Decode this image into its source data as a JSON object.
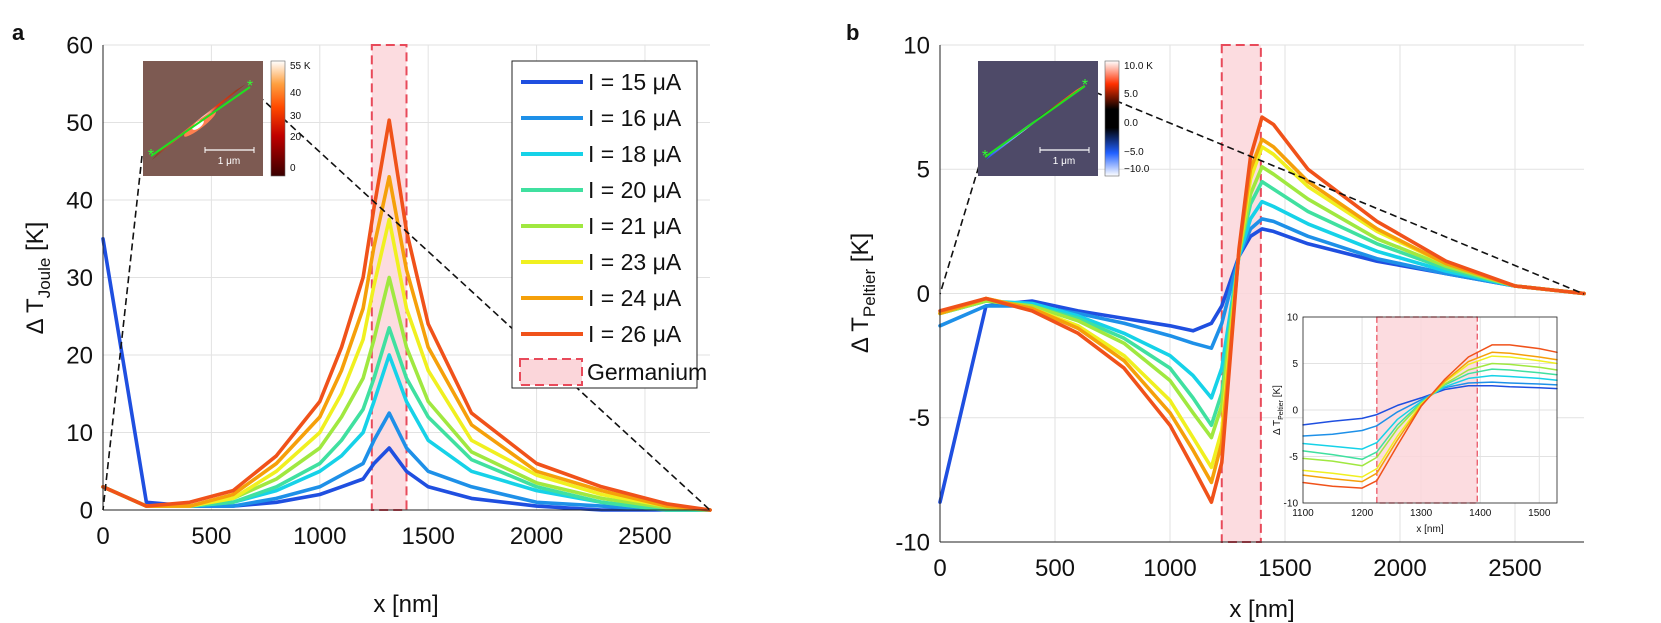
{
  "figure": {
    "panels": [
      {
        "panel_label": "a",
        "type": "line",
        "xlabel": "x [nm]",
        "ylabel_main": "Δ T",
        "ylabel_sub": "Joule",
        "ylabel_tail": " [K]",
        "xlim": [
          0,
          2800
        ],
        "ylim": [
          0,
          60
        ],
        "xticks": [
          0,
          500,
          1000,
          1500,
          2000,
          2500
        ],
        "yticks": [
          0,
          10,
          20,
          30,
          40,
          50,
          60
        ],
        "xtick_labels": [
          "0",
          "500",
          "1000",
          "1500",
          "2000",
          "2500"
        ],
        "ytick_labels": [
          "0",
          "10",
          "20",
          "30",
          "40",
          "50",
          "60"
        ],
        "germanium_band": [
          1240,
          1400
        ],
        "inset_map": {
          "colorbar_labels": [
            "55 K",
            "40",
            "30",
            "20",
            "0"
          ],
          "scale_label": "1 μm"
        }
      },
      {
        "panel_label": "b",
        "type": "line",
        "xlabel": "x [nm]",
        "ylabel_main": "Δ T",
        "ylabel_sub": "Peltier",
        "ylabel_tail": " [K]",
        "xlim": [
          0,
          2800
        ],
        "ylim": [
          -10,
          10
        ],
        "xticks": [
          0,
          500,
          1000,
          1500,
          2000,
          2500
        ],
        "yticks": [
          -10,
          -5,
          0,
          5,
          10
        ],
        "xtick_labels": [
          "0",
          "500",
          "1000",
          "1500",
          "2000",
          "2500"
        ],
        "ytick_labels": [
          "-10",
          "-5",
          "0",
          "5",
          "10"
        ],
        "germanium_band": [
          1225,
          1395
        ],
        "inset_map": {
          "colorbar_labels": [
            "10.0 K",
            "5.0",
            "0.0",
            "−5.0",
            "−10.0"
          ],
          "scale_label": "1 μm"
        },
        "zoom_inset": {
          "xlabel": "x [nm]",
          "ylabel_main": "Δ T",
          "ylabel_sub": "Peltier",
          "ylabel_tail": " [K]",
          "xlim": [
            1100,
            1530
          ],
          "ylim": [
            -10,
            10
          ],
          "xtick_labels": [
            "1100",
            "1200",
            "1300",
            "1400",
            "1500"
          ],
          "ytick_labels": [
            "-10",
            "-5",
            "0",
            "5",
            "10"
          ]
        }
      }
    ],
    "legend": {
      "entries": [
        "I = 15 μA",
        "I = 16 μA",
        "I = 18 μA",
        "I = 20 μA",
        "I = 21 μA",
        "I = 23 μA",
        "I = 24 μA",
        "I = 26 μA"
      ],
      "region_label": "Germanium"
    }
  },
  "chart_data": [
    {
      "type": "line",
      "title": "",
      "panel": "a",
      "xlabel": "x [nm]",
      "ylabel": "Δ T_Joule [K]",
      "xlim": [
        0,
        2800
      ],
      "ylim": [
        0,
        60
      ],
      "shaded_region": {
        "name": "Germanium",
        "x": [
          1240,
          1400
        ]
      },
      "x": [
        0,
        200,
        400,
        600,
        800,
        1000,
        1100,
        1200,
        1250,
        1320,
        1400,
        1500,
        1700,
        2000,
        2300,
        2600,
        2800
      ],
      "series": [
        {
          "name": "I = 15 μA",
          "color": "#1f4fe0",
          "values": [
            35,
            1,
            0.5,
            0.5,
            1,
            2,
            3,
            4,
            6,
            8,
            5,
            3,
            1.5,
            0.5,
            0,
            0,
            0
          ]
        },
        {
          "name": "I = 16 μA",
          "color": "#1e90e8",
          "values": [
            3,
            0.5,
            0.5,
            0.5,
            1.5,
            3,
            4.5,
            6,
            9,
            12.5,
            8,
            5,
            3,
            1,
            0.5,
            0,
            0
          ]
        },
        {
          "name": "I = 18 μA",
          "color": "#16d2e8",
          "values": [
            3,
            0.5,
            0.5,
            1,
            2.5,
            5,
            7,
            10,
            14,
            20,
            14,
            9,
            5,
            2.5,
            1,
            0,
            0
          ]
        },
        {
          "name": "I = 20 μA",
          "color": "#40e0a0",
          "values": [
            3,
            0.5,
            0.5,
            1,
            3,
            6,
            9,
            13,
            17,
            23.5,
            17,
            12,
            6.5,
            3,
            1,
            0,
            0
          ]
        },
        {
          "name": "I = 21 μA",
          "color": "#a0e840",
          "values": [
            3,
            0.5,
            0.5,
            1.5,
            4,
            8,
            12,
            17,
            22,
            30,
            21,
            14,
            7.5,
            3.5,
            1.5,
            0.3,
            0
          ]
        },
        {
          "name": "I = 23 μA",
          "color": "#f0f020",
          "values": [
            3,
            0.5,
            0.5,
            1.5,
            5,
            10,
            15,
            22,
            29,
            37.5,
            26,
            18,
            9,
            4.5,
            2,
            0.5,
            0
          ]
        },
        {
          "name": "I = 24 μA",
          "color": "#f5a00a",
          "values": [
            3,
            0.5,
            0.5,
            2,
            6,
            12,
            18,
            26,
            34,
            43,
            31,
            21,
            11,
            5,
            2.5,
            0.5,
            0
          ]
        },
        {
          "name": "I = 26 μA",
          "color": "#f0521a",
          "values": [
            3,
            0.5,
            1,
            2.5,
            7,
            14,
            21,
            30,
            39,
            50.3,
            36,
            24,
            12.5,
            6,
            3,
            0.8,
            0
          ]
        }
      ]
    },
    {
      "type": "line",
      "title": "",
      "panel": "b",
      "xlabel": "x [nm]",
      "ylabel": "Δ T_Peltier [K]",
      "xlim": [
        0,
        2800
      ],
      "ylim": [
        -10,
        10
      ],
      "shaded_region": {
        "name": "Germanium",
        "x": [
          1225,
          1395
        ]
      },
      "x": [
        0,
        200,
        400,
        600,
        800,
        1000,
        1100,
        1180,
        1225,
        1300,
        1350,
        1400,
        1450,
        1600,
        1900,
        2200,
        2500,
        2800
      ],
      "series": [
        {
          "name": "I = 15 μA",
          "color": "#1f4fe0",
          "values": [
            -8.4,
            -0.5,
            -0.3,
            -0.7,
            -1,
            -1.3,
            -1.5,
            -1.2,
            -0.5,
            1.5,
            2.3,
            2.6,
            2.5,
            2.0,
            1.3,
            0.8,
            0.3,
            0
          ]
        },
        {
          "name": "I = 16 μA",
          "color": "#1e90e8",
          "values": [
            -1.3,
            -0.5,
            -0.5,
            -0.8,
            -1.2,
            -1.7,
            -2,
            -2.2,
            -1.2,
            1.5,
            2.6,
            3.0,
            2.9,
            2.3,
            1.4,
            0.8,
            0.3,
            0
          ]
        },
        {
          "name": "I = 18 μA",
          "color": "#16d2e8",
          "values": [
            -0.8,
            -0.3,
            -0.4,
            -0.9,
            -1.6,
            -2.5,
            -3.3,
            -4.2,
            -3.0,
            1.5,
            3.0,
            3.7,
            3.5,
            2.8,
            1.7,
            0.9,
            0.3,
            0
          ]
        },
        {
          "name": "I = 20 μA",
          "color": "#40e0a0",
          "values": [
            -0.8,
            -0.3,
            -0.5,
            -1.0,
            -1.8,
            -3.0,
            -4.2,
            -5.3,
            -4.0,
            1.6,
            3.6,
            4.5,
            4.2,
            3.3,
            2.0,
            1.0,
            0.3,
            0
          ]
        },
        {
          "name": "I = 21 μA",
          "color": "#a0e840",
          "values": [
            -0.8,
            -0.3,
            -0.5,
            -1.1,
            -2.0,
            -3.5,
            -4.8,
            -5.8,
            -4.5,
            1.6,
            4.0,
            5.1,
            4.8,
            3.8,
            2.2,
            1.1,
            0.3,
            0
          ]
        },
        {
          "name": "I = 23 μA",
          "color": "#f0f020",
          "values": [
            -0.8,
            -0.2,
            -0.6,
            -1.3,
            -2.5,
            -4.3,
            -5.8,
            -7.0,
            -5.5,
            1.7,
            4.6,
            5.9,
            5.6,
            4.3,
            2.5,
            1.2,
            0.3,
            0
          ]
        },
        {
          "name": "I = 24 μA",
          "color": "#f5a00a",
          "values": [
            -0.8,
            -0.2,
            -0.6,
            -1.4,
            -2.7,
            -4.8,
            -6.3,
            -7.6,
            -6.0,
            1.7,
            5.0,
            6.2,
            5.9,
            4.5,
            2.6,
            1.2,
            0.3,
            0
          ]
        },
        {
          "name": "I = 26 μA",
          "color": "#f0521a",
          "values": [
            -0.7,
            -0.2,
            -0.7,
            -1.6,
            -3.0,
            -5.3,
            -7.0,
            -8.4,
            -6.8,
            1.8,
            5.5,
            7.1,
            6.8,
            5.0,
            2.9,
            1.3,
            0.3,
            0
          ]
        }
      ]
    },
    {
      "type": "line",
      "title": "",
      "panel": "b-inset",
      "xlabel": "x [nm]",
      "ylabel": "Δ T_Peltier [K]",
      "xlim": [
        1100,
        1530
      ],
      "ylim": [
        -10,
        10
      ],
      "shaded_region": {
        "name": "Germanium",
        "x": [
          1225,
          1395
        ]
      },
      "x": [
        1100,
        1150,
        1200,
        1225,
        1260,
        1300,
        1340,
        1380,
        1420,
        1450,
        1500,
        1530
      ],
      "series": [
        {
          "name": "I = 15 μA",
          "color": "#1f4fe0",
          "values": [
            -1.6,
            -1.2,
            -0.9,
            -0.5,
            0.5,
            1.3,
            2.2,
            2.6,
            2.6,
            2.5,
            2.4,
            2.3
          ]
        },
        {
          "name": "I = 16 μA",
          "color": "#1e90e8",
          "values": [
            -2.8,
            -2.6,
            -2.2,
            -1.7,
            -0.2,
            1.1,
            2.4,
            2.9,
            3.0,
            2.9,
            2.8,
            2.7
          ]
        },
        {
          "name": "I = 18 μA",
          "color": "#16d2e8",
          "values": [
            -3.6,
            -3.9,
            -4.2,
            -3.5,
            -1.0,
            0.9,
            2.5,
            3.4,
            3.7,
            3.6,
            3.4,
            3.2
          ]
        },
        {
          "name": "I = 20 μA",
          "color": "#40e0a0",
          "values": [
            -4.4,
            -4.8,
            -5.3,
            -4.5,
            -1.6,
            0.8,
            2.7,
            3.9,
            4.4,
            4.3,
            4.0,
            3.8
          ]
        },
        {
          "name": "I = 21 μA",
          "color": "#a0e840",
          "values": [
            -5.2,
            -5.5,
            -6.0,
            -5.1,
            -2.0,
            0.7,
            2.8,
            4.3,
            5.0,
            4.9,
            4.6,
            4.3
          ]
        },
        {
          "name": "I = 23 μA",
          "color": "#f0f020",
          "values": [
            -6.5,
            -6.8,
            -7.2,
            -6.3,
            -2.8,
            0.6,
            3.0,
            4.9,
            5.8,
            5.7,
            5.3,
            5.0
          ]
        },
        {
          "name": "I = 24 μA",
          "color": "#f5a00a",
          "values": [
            -7.0,
            -7.4,
            -7.7,
            -6.8,
            -3.2,
            0.5,
            3.1,
            5.2,
            6.2,
            6.1,
            5.7,
            5.4
          ]
        },
        {
          "name": "I = 26 μA",
          "color": "#f0521a",
          "values": [
            -7.8,
            -8.2,
            -8.4,
            -7.6,
            -3.8,
            0.4,
            3.3,
            5.7,
            7.0,
            7.0,
            6.6,
            6.2
          ]
        }
      ]
    }
  ]
}
